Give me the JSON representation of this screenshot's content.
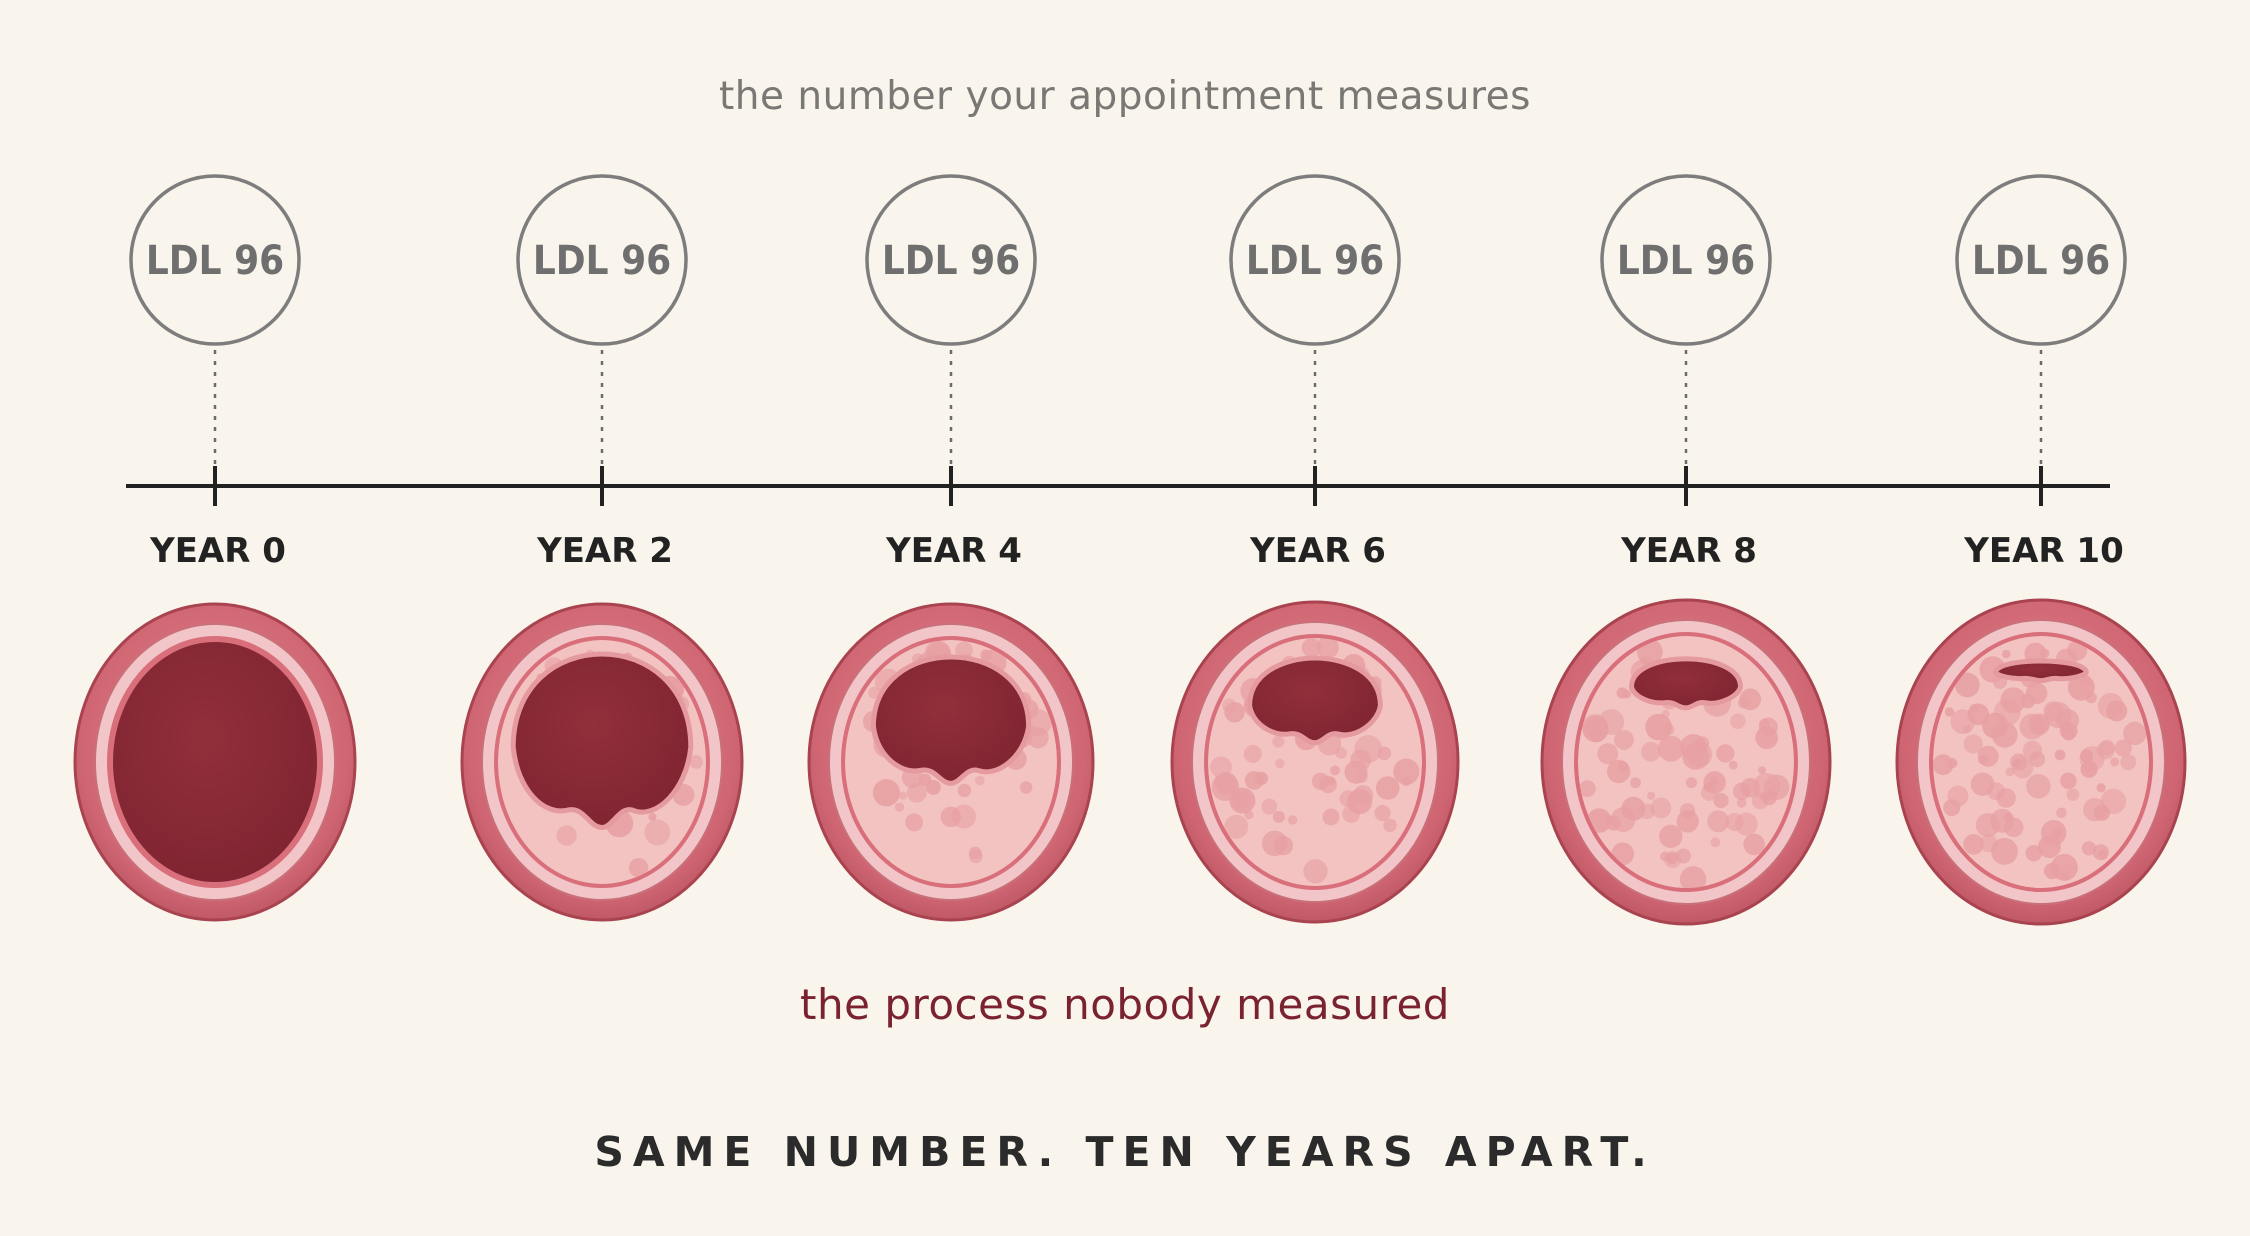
{
  "header": {
    "caption": "the number your appointment measures"
  },
  "timeline": {
    "points": [
      {
        "year_label": "YEAR 0",
        "ldl_label": "LDL 96",
        "plaque_level": 0.0
      },
      {
        "year_label": "YEAR 2",
        "ldl_label": "LDL 96",
        "plaque_level": 0.2
      },
      {
        "year_label": "YEAR 4",
        "ldl_label": "LDL 96",
        "plaque_level": 0.4
      },
      {
        "year_label": "YEAR 6",
        "ldl_label": "LDL 96",
        "plaque_level": 0.6
      },
      {
        "year_label": "YEAR 8",
        "ldl_label": "LDL 96",
        "plaque_level": 0.78
      },
      {
        "year_label": "YEAR 10",
        "ldl_label": "LDL 96",
        "plaque_level": 0.92
      }
    ]
  },
  "footer": {
    "caption": "the process nobody measured",
    "tagline": "SAME NUMBER. TEN YEARS APART."
  },
  "colors": {
    "background": "#f9f5ec",
    "bubble_stroke": "#7d7d7d",
    "axis": "#222222",
    "outer_wall": "#cf6572",
    "inner_ring": "#f2c6c8",
    "lumen": "#8a2a35",
    "plaque": "#f2c3c1",
    "plaque_blob": "#e7a0a3",
    "caption_red": "#7a2230"
  }
}
